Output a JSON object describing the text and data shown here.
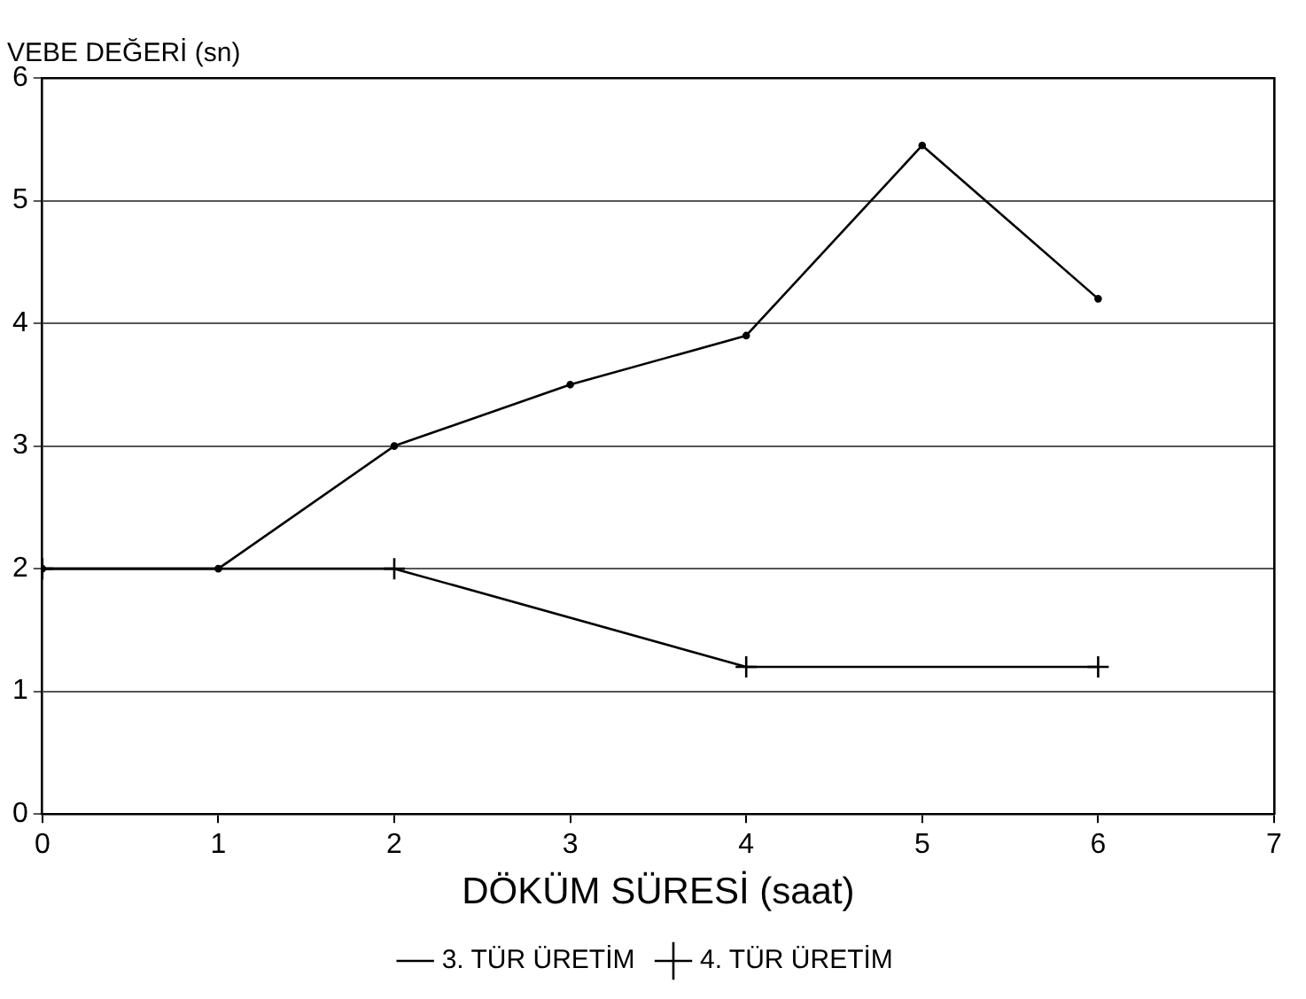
{
  "chart_data": {
    "type": "line",
    "ylabel": "VEBE DEĞERİ (sn)",
    "xlabel": "DÖKÜM SÜRESİ (saat)",
    "xlim": [
      0,
      7
    ],
    "xticks": [
      0,
      1,
      2,
      3,
      4,
      5,
      6,
      7
    ],
    "ylim": [
      0,
      6
    ],
    "yticks": [
      0,
      1,
      2,
      3,
      4,
      5,
      6
    ],
    "grid": "y",
    "legend": "bottom",
    "line_style": "solid",
    "series": [
      {
        "name": "3. TÜR ÜRETİM",
        "color": "#000000",
        "marker": "circle",
        "x": [
          0,
          1,
          2,
          3,
          4,
          5,
          6
        ],
        "values": [
          2,
          2,
          3,
          3.5,
          3.9,
          5.45,
          4.2
        ]
      },
      {
        "name": "4. TÜR ÜRETİM",
        "color": "#000000",
        "marker": "cross",
        "x": [
          0,
          2,
          4,
          6
        ],
        "values": [
          2,
          2,
          1.2,
          1.2
        ]
      }
    ]
  }
}
